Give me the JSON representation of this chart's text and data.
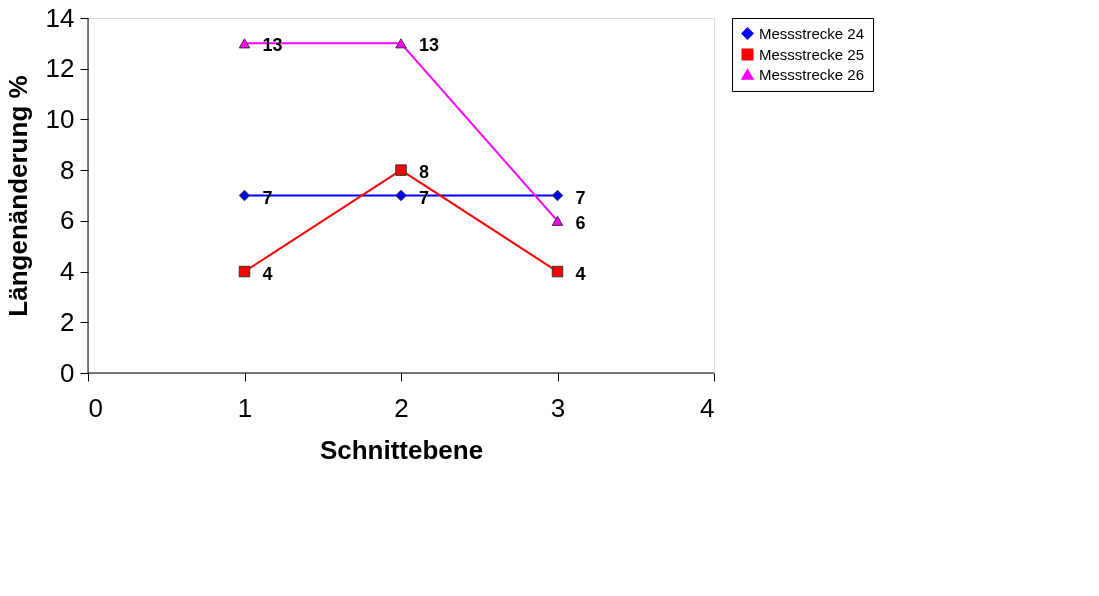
{
  "chart_data": {
    "type": "line",
    "xlabel": "Schnittebene",
    "ylabel": "Längenänderung %",
    "x": [
      1,
      2,
      3
    ],
    "xlim": [
      0,
      4
    ],
    "xticks": [
      0,
      1,
      2,
      3,
      4
    ],
    "ylim": [
      0,
      14
    ],
    "yticks": [
      0,
      2,
      4,
      6,
      8,
      10,
      12,
      14
    ],
    "series": [
      {
        "name": "Messstrecke 24",
        "color": "#0000ff",
        "marker": "diamond",
        "values": [
          7,
          7,
          7
        ]
      },
      {
        "name": "Messstrecke 25",
        "color": "#ff0000",
        "marker": "square",
        "values": [
          4,
          8,
          4
        ]
      },
      {
        "name": "Messstrecke 26",
        "color": "#ff00ff",
        "marker": "triangle",
        "values": [
          13,
          13,
          6
        ]
      }
    ],
    "data_labels": true,
    "grid": false,
    "legend": "right",
    "line_style": "solid"
  }
}
